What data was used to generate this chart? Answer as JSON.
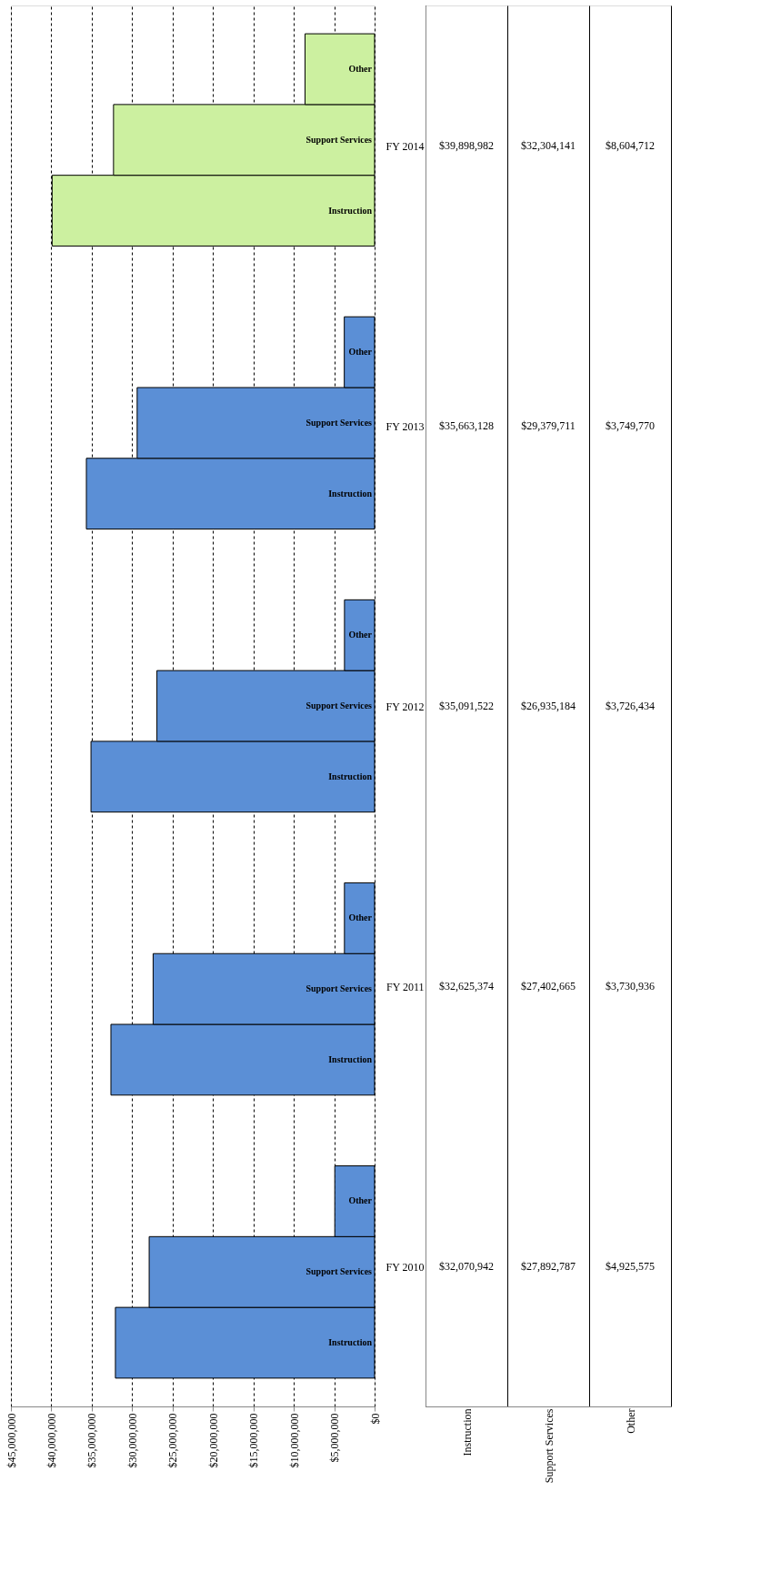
{
  "chart_data": {
    "type": "bar",
    "orientation": "horizontal",
    "categories": [
      "FY 2014",
      "FY 2013",
      "FY 2012",
      "FY 2011",
      "FY 2010"
    ],
    "series": [
      {
        "name": "Instruction",
        "colors": [
          "#ccf0a0",
          "#5b8fd6",
          "#5b8fd6",
          "#5b8fd6",
          "#5b8fd6"
        ],
        "values": [
          39898982,
          35663128,
          35091522,
          32625374,
          32070942
        ],
        "value_labels": [
          "$39,898,982",
          "$35,663,128",
          "$35,091,522",
          "$32,625,374",
          "$32,070,942"
        ]
      },
      {
        "name": "Support Services",
        "colors": [
          "#ccf0a0",
          "#5b8fd6",
          "#5b8fd6",
          "#5b8fd6",
          "#5b8fd6"
        ],
        "values": [
          32304141,
          29379711,
          26935184,
          27402665,
          27892787
        ],
        "value_labels": [
          "$32,304,141",
          "$29,379,711",
          "$26,935,184",
          "$27,402,665",
          "$27,892,787"
        ]
      },
      {
        "name": "Other",
        "colors": [
          "#ccf0a0",
          "#5b8fd6",
          "#5b8fd6",
          "#5b8fd6",
          "#5b8fd6"
        ],
        "values": [
          8604712,
          3749770,
          3726434,
          3730936,
          4925575
        ],
        "value_labels": [
          "$8,604,712",
          "$3,749,770",
          "$3,726,434",
          "$3,730,936",
          "$4,925,575"
        ]
      }
    ],
    "xlim": [
      45000000,
      0
    ],
    "xticks": [
      {
        "value": 45000000,
        "label": "$45,000,000"
      },
      {
        "value": 40000000,
        "label": "$40,000,000"
      },
      {
        "value": 35000000,
        "label": "$35,000,000"
      },
      {
        "value": 30000000,
        "label": "$30,000,000"
      },
      {
        "value": 25000000,
        "label": "$25,000,000"
      },
      {
        "value": 20000000,
        "label": "$20,000,000"
      },
      {
        "value": 15000000,
        "label": "$15,000,000"
      },
      {
        "value": 10000000,
        "label": "$10,000,000"
      },
      {
        "value": 5000000,
        "label": "$5,000,000"
      },
      {
        "value": 0,
        "label": "$0"
      }
    ],
    "grid": "x"
  }
}
